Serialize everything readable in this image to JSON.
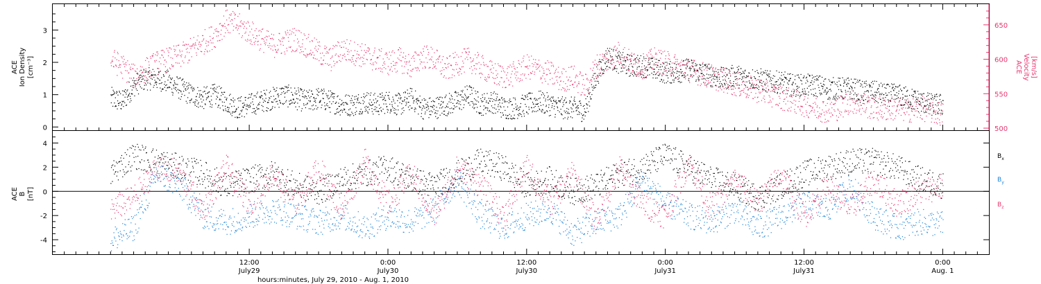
{
  "chart_data": [
    {
      "type": "scatter",
      "panel": "top",
      "ylabel_left": [
        "ACE",
        "Ion Density",
        "[cm⁻³]"
      ],
      "ylabel_right": [
        "ACE",
        "Velocity",
        "[km/s]"
      ],
      "ylim_left": [
        -0.1,
        3.8
      ],
      "ylim_right": [
        497,
        680
      ],
      "yticks_left": [
        0,
        1,
        2,
        3
      ],
      "yticks_right": [
        500,
        550,
        600,
        650
      ],
      "colors": {
        "density": "#000000",
        "velocity": "#e8356f"
      },
      "series": [
        {
          "key": "density",
          "axis": "left",
          "x_hours": [
            0,
            1,
            2,
            3,
            4,
            5,
            6,
            7,
            8,
            9,
            10,
            11,
            12,
            13,
            14,
            15,
            16,
            17,
            18,
            19,
            20,
            21,
            22,
            23,
            24,
            25,
            26,
            27,
            28,
            29,
            30,
            31,
            32,
            33,
            34,
            35,
            36,
            37,
            38,
            39,
            40,
            41,
            42,
            43,
            44,
            45,
            46,
            47,
            48,
            49,
            50,
            51,
            52,
            53,
            54,
            55,
            56,
            57,
            58,
            59,
            60,
            61,
            62,
            63,
            64,
            65,
            66,
            67,
            68,
            69,
            70,
            71,
            72
          ],
          "values": [
            0.9,
            0.8,
            1.3,
            1.5,
            1.5,
            1.4,
            1.2,
            1.0,
            0.9,
            1.0,
            0.8,
            0.6,
            0.7,
            0.8,
            0.9,
            1.0,
            0.9,
            0.8,
            0.9,
            0.8,
            0.7,
            0.7,
            0.8,
            0.7,
            0.8,
            0.7,
            0.9,
            0.6,
            0.6,
            0.7,
            0.8,
            1.0,
            0.7,
            0.8,
            0.6,
            0.6,
            0.7,
            0.8,
            0.7,
            0.6,
            0.6,
            0.5,
            1.6,
            2.2,
            2.0,
            1.9,
            1.9,
            1.8,
            1.7,
            1.7,
            1.8,
            1.7,
            1.6,
            1.5,
            1.6,
            1.5,
            1.5,
            1.4,
            1.4,
            1.3,
            1.3,
            1.3,
            1.2,
            1.2,
            1.2,
            1.1,
            1.1,
            1.0,
            1.0,
            0.9,
            0.8,
            0.7,
            0.7
          ]
        },
        {
          "key": "velocity",
          "axis": "right",
          "x_hours": [
            0,
            1,
            2,
            3,
            4,
            5,
            6,
            7,
            8,
            9,
            10,
            11,
            12,
            13,
            14,
            15,
            16,
            17,
            18,
            19,
            20,
            21,
            22,
            23,
            24,
            25,
            26,
            27,
            28,
            29,
            30,
            31,
            32,
            33,
            34,
            35,
            36,
            37,
            38,
            39,
            40,
            41,
            42,
            43,
            44,
            45,
            46,
            47,
            48,
            49,
            50,
            51,
            52,
            53,
            54,
            55,
            56,
            57,
            58,
            59,
            60,
            61,
            62,
            63,
            64,
            65,
            66,
            67,
            68,
            69,
            70,
            71,
            72
          ],
          "values": [
            600,
            590,
            575,
            585,
            595,
            600,
            605,
            615,
            625,
            635,
            655,
            650,
            640,
            630,
            620,
            625,
            630,
            620,
            610,
            600,
            615,
            610,
            605,
            600,
            595,
            600,
            590,
            605,
            600,
            585,
            595,
            600,
            590,
            580,
            575,
            580,
            590,
            585,
            580,
            570,
            575,
            560,
            590,
            600,
            610,
            595,
            590,
            600,
            595,
            590,
            585,
            580,
            575,
            570,
            565,
            560,
            555,
            550,
            545,
            540,
            535,
            530,
            525,
            530,
            540,
            535,
            530,
            528,
            530,
            526,
            530,
            525,
            520
          ]
        }
      ]
    },
    {
      "type": "scatter",
      "panel": "bottom",
      "ylabel_left": [
        "ACE",
        "B",
        "[nT]"
      ],
      "ylim": [
        -5.2,
        5.0
      ],
      "yticks": [
        -4,
        -2,
        0,
        2,
        4
      ],
      "zero_line": true,
      "legend_placement": "right",
      "legend": [
        {
          "main": "B",
          "sub": "x",
          "color": "#000000"
        },
        {
          "main": "B",
          "sub": "y",
          "color": "#1a82d8"
        },
        {
          "main": "B",
          "sub": "z",
          "color": "#e8356f"
        }
      ],
      "series": [
        {
          "key": "Bx",
          "color": "#000000",
          "x_hours": [
            0,
            2,
            4,
            6,
            8,
            10,
            12,
            14,
            16,
            18,
            20,
            22,
            24,
            26,
            28,
            30,
            32,
            34,
            36,
            38,
            40,
            42,
            44,
            46,
            48,
            50,
            52,
            54,
            56,
            58,
            60,
            62,
            64,
            66,
            68,
            70,
            72
          ],
          "values": [
            1.5,
            3.0,
            2.5,
            2.0,
            1.5,
            0.5,
            1.0,
            1.5,
            0.5,
            0.0,
            1.0,
            1.5,
            2.0,
            1.0,
            0.5,
            1.5,
            2.5,
            2.0,
            0.5,
            1.0,
            0.0,
            0.5,
            1.5,
            2.0,
            3.0,
            2.0,
            1.0,
            0.5,
            -0.5,
            0.5,
            1.5,
            2.0,
            2.5,
            2.5,
            2.0,
            1.0,
            0.5
          ]
        },
        {
          "key": "By",
          "color": "#1a82d8",
          "x_hours": [
            0,
            2,
            4,
            6,
            8,
            10,
            12,
            14,
            16,
            18,
            20,
            22,
            24,
            26,
            28,
            30,
            32,
            34,
            36,
            38,
            40,
            42,
            44,
            46,
            48,
            50,
            52,
            54,
            56,
            58,
            60,
            62,
            64,
            66,
            68,
            70,
            72
          ],
          "values": [
            -4.0,
            -3.0,
            1.5,
            0.5,
            -2.0,
            -2.5,
            -2.0,
            -1.5,
            -2.0,
            -2.5,
            -2.0,
            -3.0,
            -2.0,
            -2.5,
            -1.5,
            1.0,
            -2.0,
            -3.0,
            -2.0,
            -1.5,
            -3.5,
            -2.5,
            -2.0,
            1.0,
            -1.0,
            -2.0,
            -2.5,
            -1.5,
            -3.0,
            -2.0,
            -1.0,
            -1.5,
            0.5,
            -2.0,
            -3.0,
            -2.5,
            -2.7
          ]
        },
        {
          "key": "Bz",
          "color": "#e8356f",
          "x_hours": [
            0,
            2,
            4,
            6,
            8,
            10,
            12,
            14,
            16,
            18,
            20,
            22,
            24,
            26,
            28,
            30,
            32,
            34,
            36,
            38,
            40,
            42,
            44,
            46,
            48,
            50,
            52,
            54,
            56,
            58,
            60,
            62,
            64,
            66,
            68,
            70,
            72
          ],
          "values": [
            -1.5,
            -0.5,
            2.0,
            1.5,
            -1.5,
            2.0,
            -1.0,
            1.5,
            -1.0,
            2.0,
            -1.5,
            2.5,
            -1.0,
            1.5,
            -2.0,
            2.0,
            0.5,
            -2.0,
            2.0,
            -1.0,
            1.5,
            -2.5,
            2.0,
            -1.0,
            -2.0,
            2.5,
            -1.5,
            1.0,
            -1.0,
            1.5,
            -2.0,
            0.5,
            -1.5,
            1.0,
            -1.0,
            0.0,
            0.5
          ]
        }
      ]
    }
  ],
  "x_axis": {
    "xlim_hours": [
      -5,
      76
    ],
    "ticks": [
      {
        "hour": 12,
        "time": "12:00",
        "date": "July29"
      },
      {
        "hour": 24,
        "time": "0:00",
        "date": "July30"
      },
      {
        "hour": 36,
        "time": "12:00",
        "date": "July30"
      },
      {
        "hour": 48,
        "time": "0:00",
        "date": "July31"
      },
      {
        "hour": 60,
        "time": "12:00",
        "date": "July31"
      },
      {
        "hour": 72,
        "time": "0:00",
        "date": "Aug. 1"
      }
    ],
    "xlabel": "hours:minutes, July 29, 2010 - Aug.  1, 2010"
  }
}
